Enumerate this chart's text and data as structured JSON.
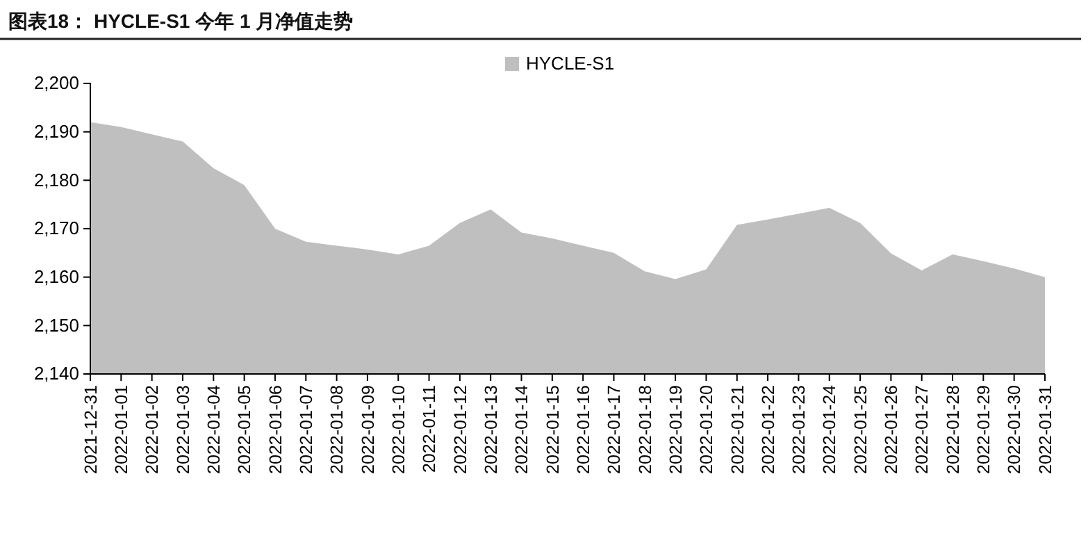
{
  "chart_data": {
    "type": "area",
    "title": "图表18：  HYCLE-S1 今年 1 月净值走势",
    "categories": [
      "2021-12-31",
      "2022-01-01",
      "2022-01-02",
      "2022-01-03",
      "2022-01-04",
      "2022-01-05",
      "2022-01-06",
      "2022-01-07",
      "2022-01-08",
      "2022-01-09",
      "2022-01-10",
      "2022-01-11",
      "2022-01-12",
      "2022-01-13",
      "2022-01-14",
      "2022-01-15",
      "2022-01-16",
      "2022-01-17",
      "2022-01-18",
      "2022-01-19",
      "2022-01-20",
      "2022-01-21",
      "2022-01-22",
      "2022-01-23",
      "2022-01-24",
      "2022-01-25",
      "2022-01-26",
      "2022-01-27",
      "2022-01-28",
      "2022-01-29",
      "2022-01-30",
      "2022-01-31"
    ],
    "series": [
      {
        "name": "HYCLE-S1",
        "color": "#bfbfbf",
        "values": [
          2192,
          2191,
          2189.5,
          2188,
          2182.5,
          2179,
          2170,
          2167.3,
          2166.5,
          2165.7,
          2164.7,
          2166.5,
          2171.2,
          2174,
          2169.2,
          2168,
          2166.5,
          2165,
          2161.2,
          2159.6,
          2161.6,
          2170.8,
          2171.9,
          2173.1,
          2174.3,
          2171.2,
          2164.9,
          2161.4,
          2164.7,
          2163.3,
          2161.8,
          2160
        ]
      }
    ],
    "ylim": [
      2140,
      2200
    ],
    "yticks": [
      {
        "value": 2140,
        "label": "2,140"
      },
      {
        "value": 2150,
        "label": "2,150"
      },
      {
        "value": 2160,
        "label": "2,160"
      },
      {
        "value": 2170,
        "label": "2,170"
      },
      {
        "value": 2180,
        "label": "2,180"
      },
      {
        "value": 2190,
        "label": "2,190"
      },
      {
        "value": 2200,
        "label": "2,200"
      }
    ],
    "grid": false,
    "legend": "top"
  }
}
